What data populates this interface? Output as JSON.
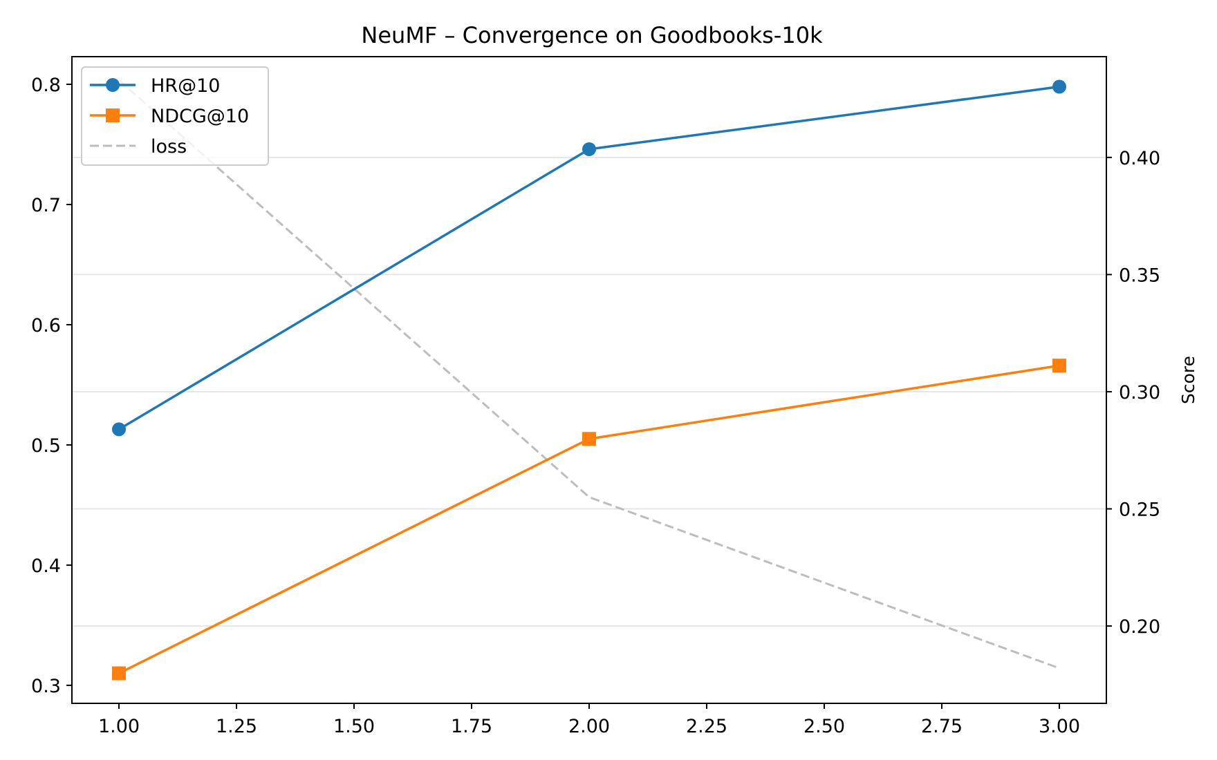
{
  "chart_data": {
    "type": "line",
    "title": "NeuMF – Convergence on Goodbooks-10k",
    "xlabel": "",
    "ylabel_left": "",
    "ylabel_right": "Score",
    "x": [
      1.0,
      2.0,
      3.0
    ],
    "xlim": [
      0.9,
      3.1
    ],
    "ylim_left": [
      0.285,
      0.823
    ],
    "ylim_right": [
      0.167,
      0.443
    ],
    "x_ticks": [
      1.0,
      1.25,
      1.5,
      1.75,
      2.0,
      2.25,
      2.5,
      2.75,
      3.0
    ],
    "x_tick_labels": [
      "1.00",
      "1.25",
      "1.50",
      "1.75",
      "2.00",
      "2.25",
      "2.50",
      "2.75",
      "3.00"
    ],
    "y_ticks_left": [
      0.3,
      0.4,
      0.5,
      0.6,
      0.7,
      0.8
    ],
    "y_tick_labels_left": [
      "0.3",
      "0.4",
      "0.5",
      "0.6",
      "0.7",
      "0.8"
    ],
    "y_ticks_right": [
      0.2,
      0.25,
      0.3,
      0.35,
      0.4
    ],
    "y_tick_labels_right": [
      "0.20",
      "0.25",
      "0.30",
      "0.35",
      "0.40"
    ],
    "grid": "horizontal, right axis",
    "legend_position": "top-left",
    "series": [
      {
        "name": "HR@10",
        "axis": "left",
        "values": [
          0.513,
          0.746,
          0.798
        ],
        "color": "#1f77b4",
        "marker": "circle",
        "style": "solid"
      },
      {
        "name": "NDCG@10",
        "axis": "left",
        "values": [
          0.31,
          0.505,
          0.566
        ],
        "color": "#ff7f0e",
        "marker": "square",
        "style": "solid"
      },
      {
        "name": "loss",
        "axis": "right",
        "values": [
          0.433,
          0.255,
          0.182
        ],
        "color": "#bdbdbd",
        "marker": "none",
        "style": "dashed"
      }
    ]
  }
}
